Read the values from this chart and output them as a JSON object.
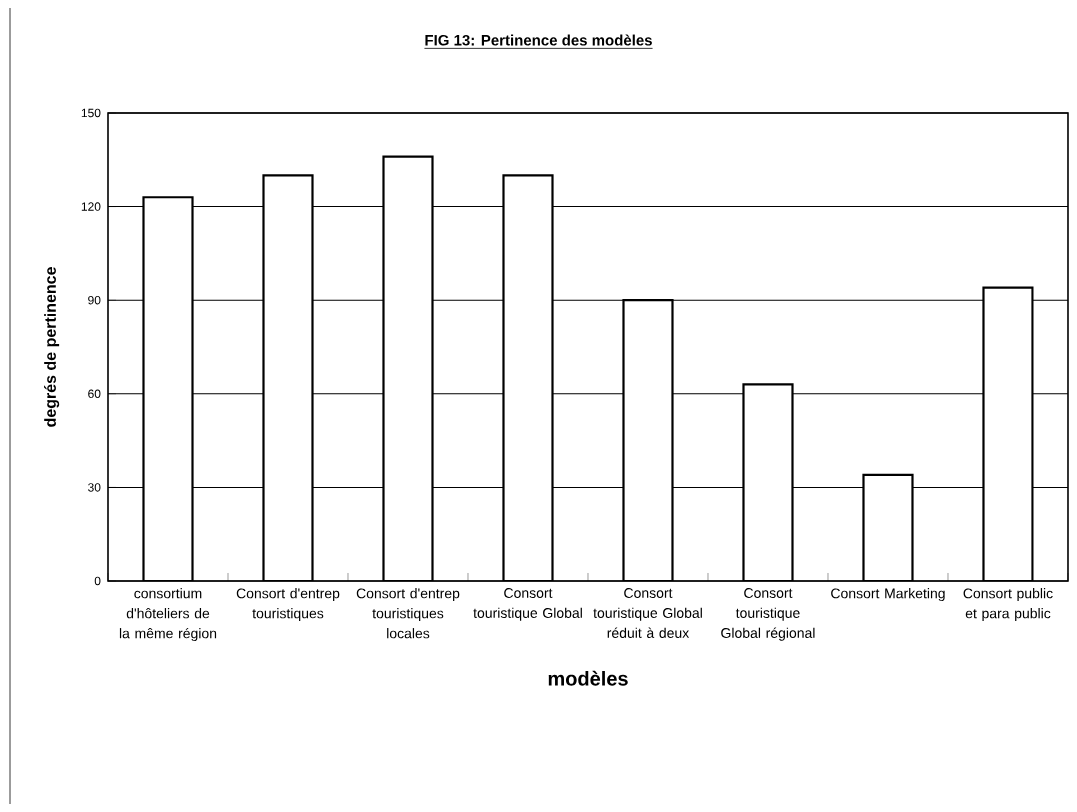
{
  "chart_data": {
    "type": "bar",
    "title": "FIG 13: Pertinence des modèles",
    "xlabel": "modèles",
    "ylabel": "degrés de pertinence",
    "categories": [
      "consortium d'hôteliers de la même région",
      "Consort d'entrep touristiques",
      "Consort d'entrep touristiques locales",
      "Consort touristique Global",
      "Consort touristique Global réduit à deux",
      "Consort touristique Global régional",
      "Consort Marketing",
      "Consort public et para public"
    ],
    "values": [
      123,
      130,
      136,
      130,
      90,
      63,
      34,
      94
    ],
    "color": "#ffffff",
    "ylim": [
      0,
      150
    ],
    "yticks": [
      0,
      30,
      60,
      90,
      120,
      150
    ],
    "grid": "y"
  }
}
